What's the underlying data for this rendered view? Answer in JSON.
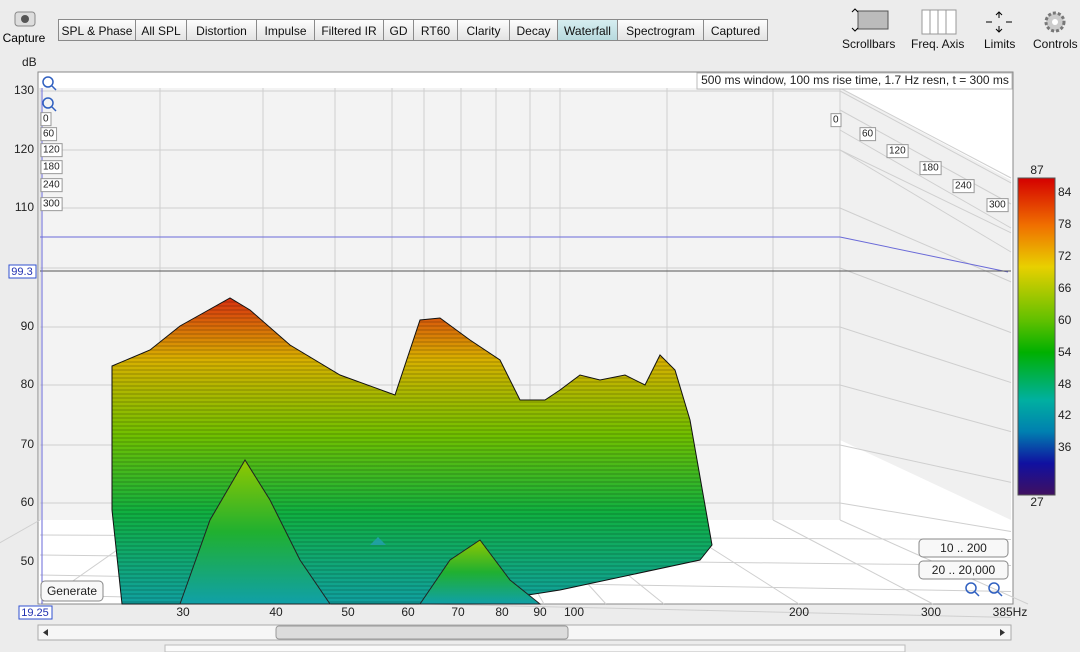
{
  "toolbar": {
    "capture": "Capture",
    "tabs": [
      "SPL & Phase",
      "All SPL",
      "Distortion",
      "Impulse",
      "Filtered IR",
      "GD",
      "RT60",
      "Clarity",
      "Decay",
      "Waterfall",
      "Spectrogram",
      "Captured"
    ],
    "tools": [
      "Scrollbars",
      "Freq. Axis",
      "Limits",
      "Controls"
    ]
  },
  "plot": {
    "y_unit": "dB",
    "y_labels": [
      "130",
      "120",
      "110",
      "90",
      "80",
      "70",
      "60",
      "50"
    ],
    "x_labels": [
      "30",
      "40",
      "50",
      "60",
      "70",
      "80",
      "90",
      "100",
      "200",
      "300",
      "385Hz"
    ],
    "info": "500 ms window, 100 ms rise time,  1.7 Hz resn, t = 300 ms",
    "depth_left": [
      "0",
      "60",
      "120",
      "180",
      "240",
      "300"
    ],
    "depth_right": [
      "0",
      "60",
      "120",
      "180",
      "240",
      "300"
    ],
    "colorbar": [
      "87",
      "84",
      "78",
      "72",
      "66",
      "60",
      "54",
      "48",
      "42",
      "36",
      "27"
    ],
    "cursor_y": "99.3",
    "cursor_x": "19.25",
    "buttons": [
      "Generate",
      "10 .. 200",
      "20 .. 20,000"
    ]
  }
}
